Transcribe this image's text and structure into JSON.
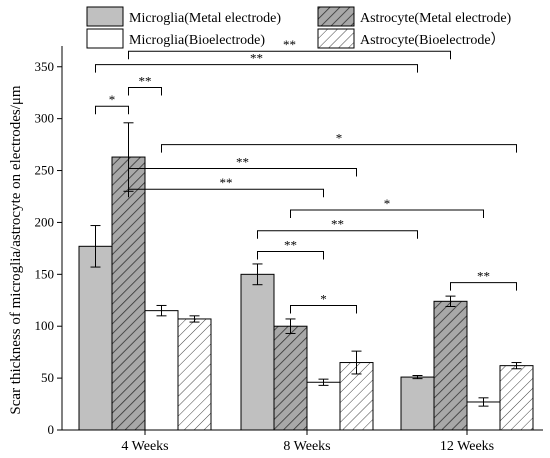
{
  "chart_data": {
    "type": "bar",
    "categories": [
      "4 Weeks",
      "8 Weeks",
      "12 Weeks"
    ],
    "ylabel": "Scar thickness of microglia/astrocyte on electrodes/μm",
    "xlabel": "",
    "ylim": [
      0,
      370
    ],
    "yticks": [
      0,
      50,
      100,
      150,
      200,
      250,
      300,
      350
    ],
    "grid": false,
    "legend_placement": "top",
    "series": [
      {
        "name": "Microglia(Metal electrode)",
        "fill": "#c0c0c0",
        "hatch": false,
        "values": [
          177,
          150,
          51
        ],
        "errors": [
          20,
          10,
          1.5
        ]
      },
      {
        "name": "Astrocyte(Metal electrode)",
        "fill": "#a8a8a8",
        "hatch": true,
        "values": [
          263,
          100,
          124
        ],
        "errors": [
          33,
          7,
          5
        ]
      },
      {
        "name": "Microglia(Bioelectrode)",
        "fill": "#ffffff",
        "hatch": false,
        "values": [
          115,
          46,
          27
        ],
        "errors": [
          5,
          3,
          4
        ]
      },
      {
        "name": "Astrocyte(Bioelectrode）",
        "fill": "#ffffff",
        "hatch": true,
        "values": [
          107,
          65,
          62
        ],
        "errors": [
          3,
          11,
          3
        ]
      }
    ],
    "significance": [
      {
        "from": [
          0,
          1
        ],
        "to": [
          2,
          1
        ],
        "y": 365,
        "label": "**"
      },
      {
        "from": [
          0,
          0
        ],
        "to": [
          2,
          0
        ],
        "y": 352,
        "label": "**"
      },
      {
        "from": [
          0,
          0
        ],
        "to": [
          0,
          1
        ],
        "y": 312,
        "label": "*"
      },
      {
        "from": [
          0,
          1
        ],
        "to": [
          0,
          2
        ],
        "y": 330,
        "label": "**"
      },
      {
        "from": [
          0,
          2
        ],
        "to": [
          2,
          3
        ],
        "y": 275,
        "label": "*"
      },
      {
        "from": [
          0,
          1
        ],
        "to": [
          1,
          3
        ],
        "y": 252,
        "label": "**"
      },
      {
        "from": [
          0,
          1
        ],
        "to": [
          1,
          2
        ],
        "y": 232,
        "label": "**"
      },
      {
        "from": [
          1,
          1
        ],
        "to": [
          2,
          2
        ],
        "y": 212,
        "label": "*"
      },
      {
        "from": [
          1,
          0
        ],
        "to": [
          2,
          0
        ],
        "y": 192,
        "label": "**"
      },
      {
        "from": [
          1,
          0
        ],
        "to": [
          1,
          2
        ],
        "y": 172,
        "label": "**"
      },
      {
        "from": [
          1,
          1
        ],
        "to": [
          1,
          3
        ],
        "y": 120,
        "label": "*"
      },
      {
        "from": [
          2,
          1
        ],
        "to": [
          2,
          3
        ],
        "y": 142,
        "label": "**"
      }
    ]
  }
}
